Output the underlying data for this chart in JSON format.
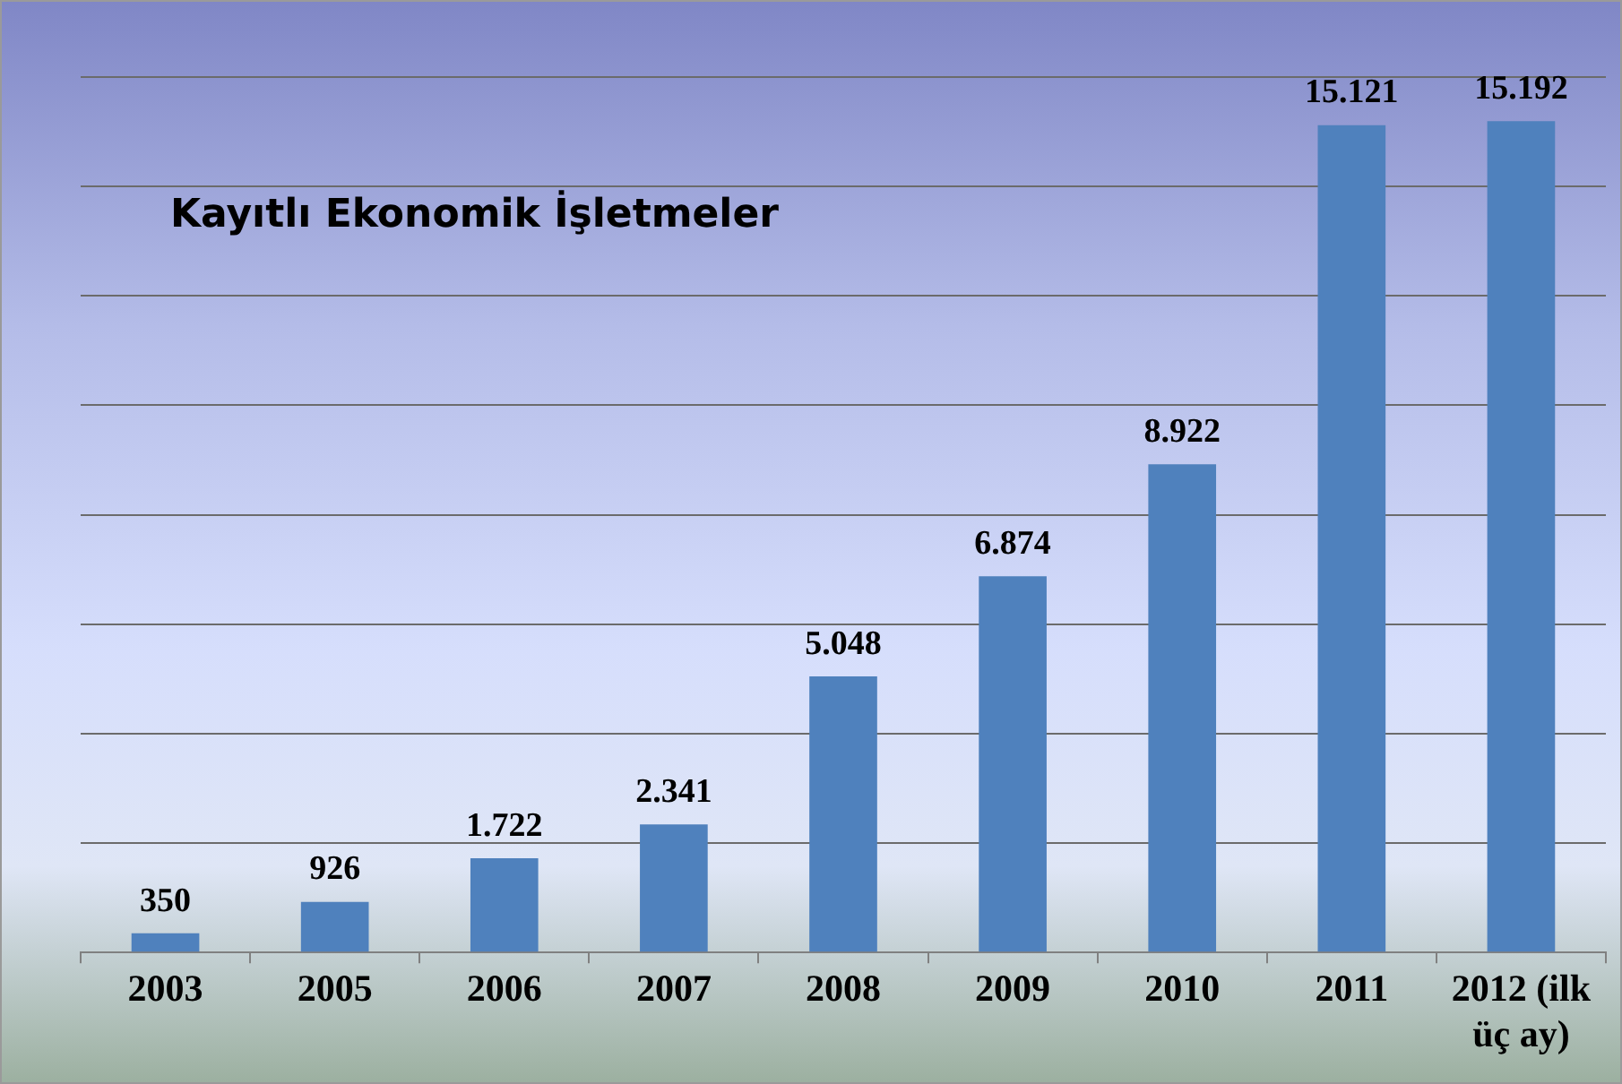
{
  "chart_data": {
    "type": "bar",
    "title": "Kayıtlı Ekonomik İşletmeler",
    "categories": [
      "2003",
      "2005",
      "2006",
      "2007",
      "2008",
      "2009",
      "2010",
      "2011",
      "2012 (ilk üç ay)"
    ],
    "values": [
      350,
      926,
      1722,
      2341,
      5048,
      6874,
      8922,
      15121,
      15192
    ],
    "value_labels": [
      "350",
      "926",
      "1.722",
      "2.341",
      "5.048",
      "6.874",
      "8.922",
      "15.121",
      "15.192"
    ],
    "color": "#4f81bd",
    "ylim": [
      0,
      16000
    ],
    "yticks": [
      {
        "value": 0,
        "label": null
      },
      {
        "value": 2000,
        "label": null
      },
      {
        "value": 4000,
        "label": null
      },
      {
        "value": 6000,
        "label": null
      },
      {
        "value": 8000,
        "label": null
      },
      {
        "value": 10000,
        "label": null
      },
      {
        "value": 12000,
        "label": null
      },
      {
        "value": 14000,
        "label": null
      },
      {
        "value": 16000,
        "label": null
      }
    ],
    "grid": "y",
    "legend": false,
    "tick_labels": "x"
  }
}
